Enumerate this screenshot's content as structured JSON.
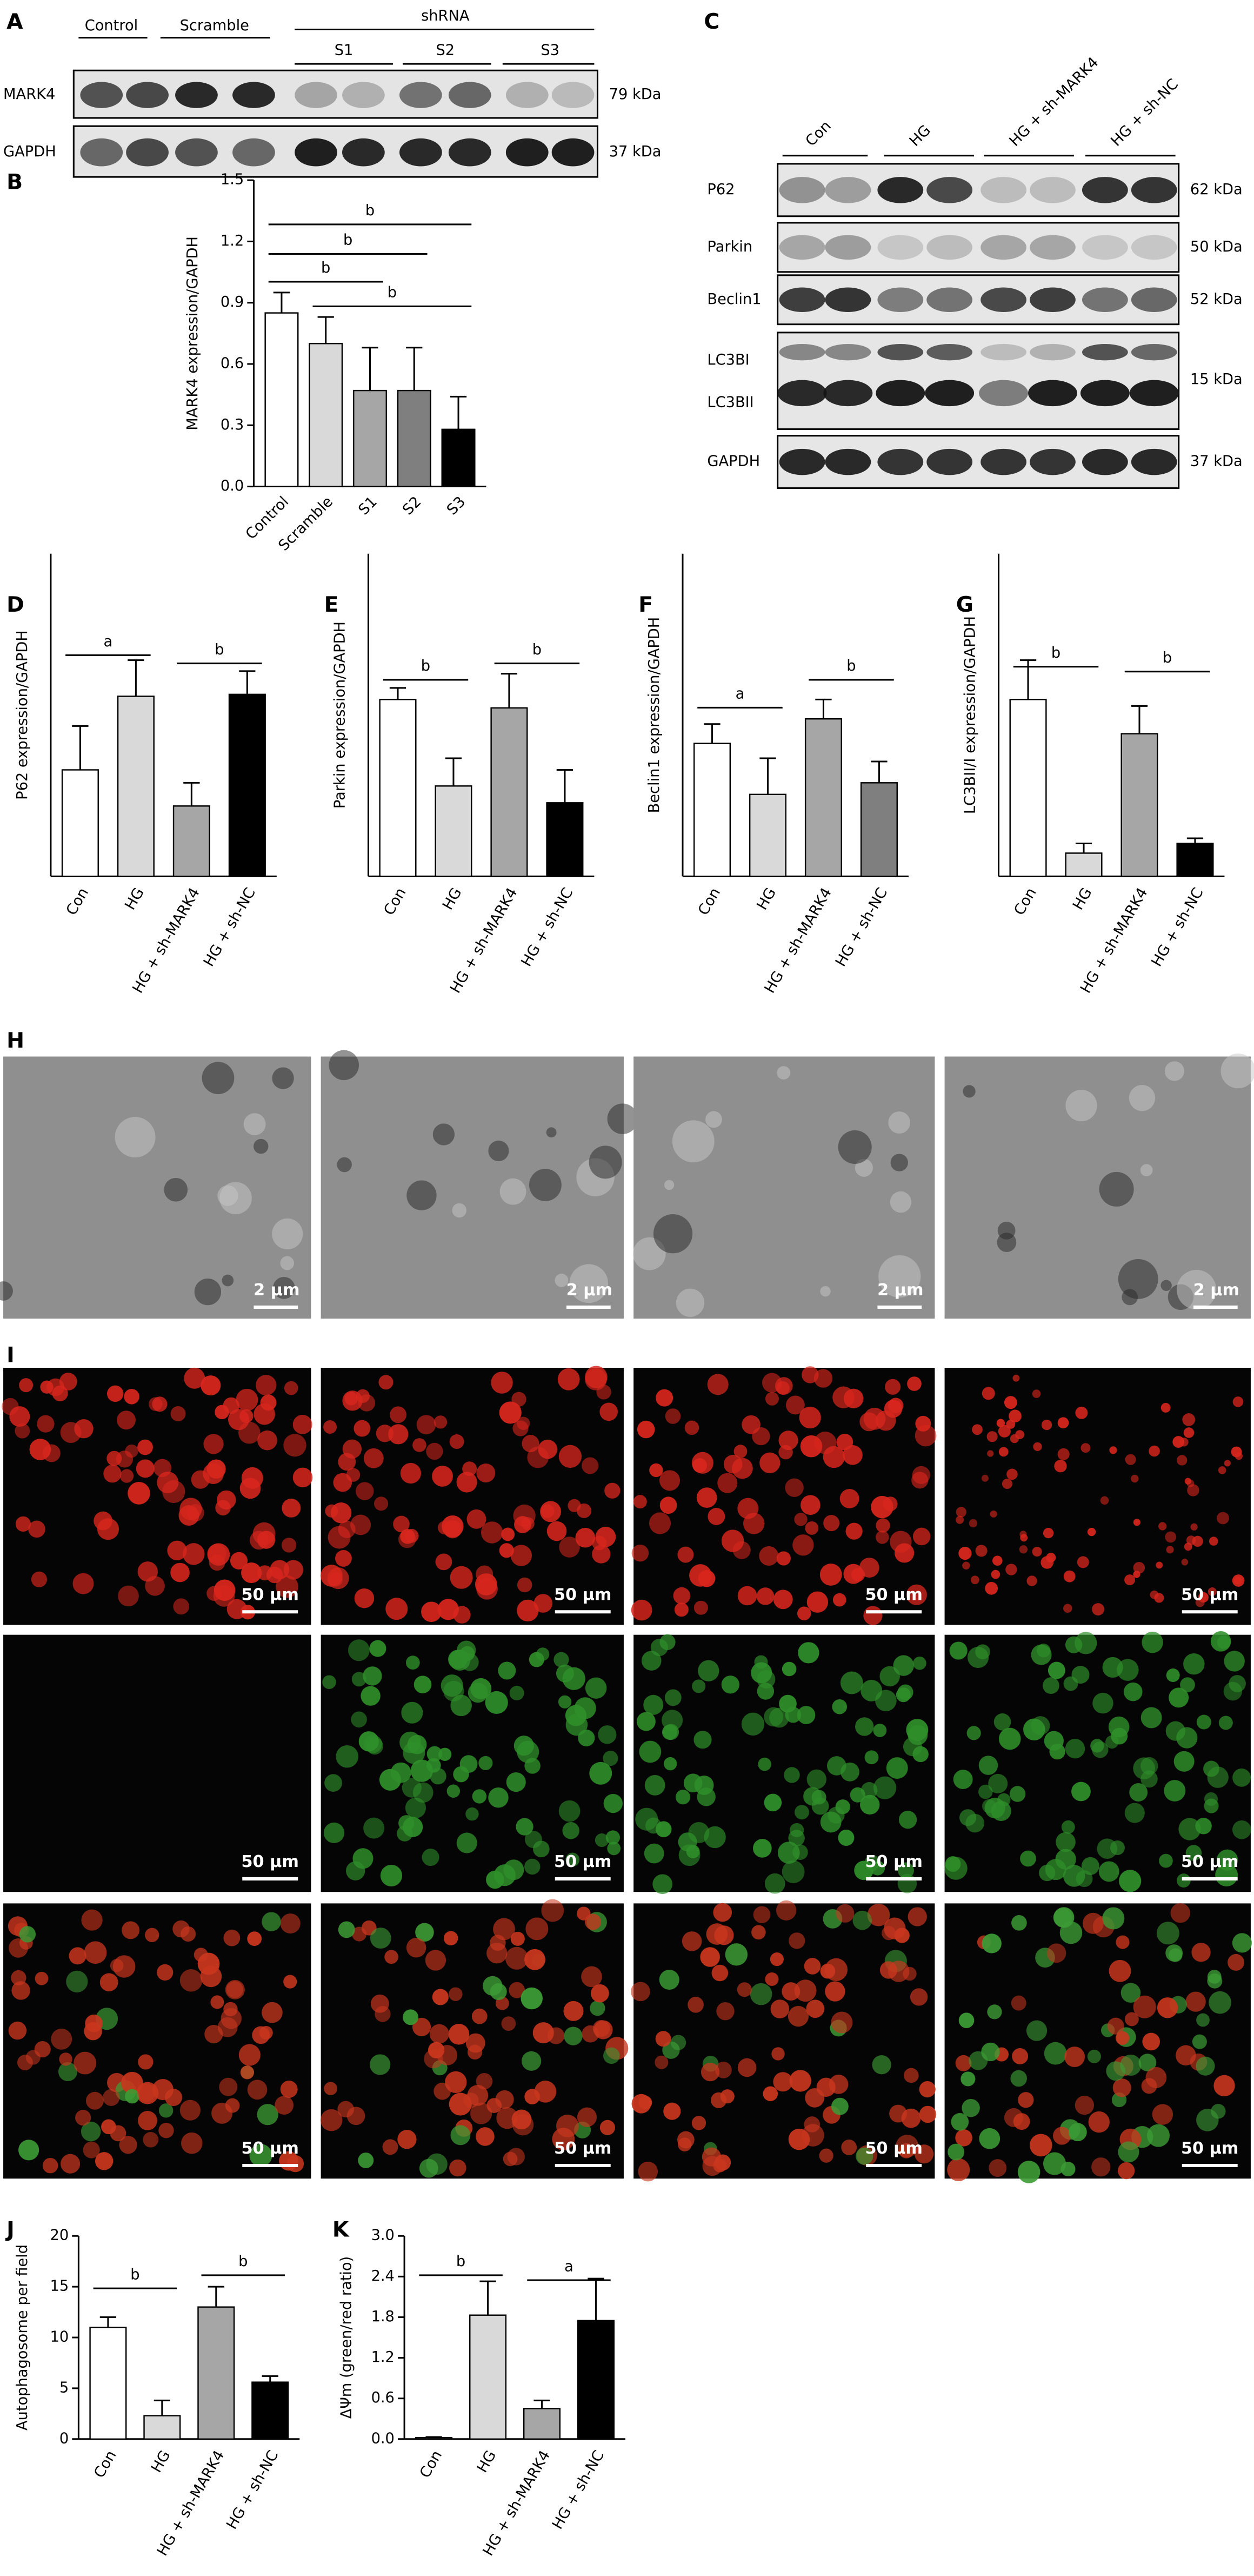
{
  "blot_a": {
    "label": "A",
    "groups": [
      "Control",
      "Scramble",
      "shRNA"
    ],
    "lanes": [
      "S1",
      "S2",
      "S3"
    ],
    "rows": [
      "MARK4",
      "GAPDH"
    ],
    "sizes": [
      "79 kDa",
      "37 kDa"
    ]
  },
  "blot_c": {
    "label": "C",
    "groups": [
      "Con",
      "HG",
      "HG + sh-MARK4",
      "HG + sh-NC"
    ],
    "rows": [
      "P62",
      "Parkin",
      "Beclin1",
      "LC3BI",
      "LC3BII",
      "GAPDH"
    ],
    "sizes": [
      "62 kDa",
      "50 kDa",
      "52 kDa",
      "15 kDa",
      "37 kDa"
    ]
  },
  "panel_h": {
    "label": "H",
    "scale_labels": [
      "2 μm",
      "2 μm",
      "2 μm",
      "2 μm"
    ]
  },
  "panel_i": {
    "label": "I",
    "scale_labels": [
      "50 μm",
      "50 μm",
      "50 μm",
      "50 μm",
      "50 μm",
      "50 μm",
      "50 μm",
      "50 μm",
      "50 μm",
      "50 μm",
      "50 μm",
      "50 μm"
    ]
  },
  "chart_data": [
    {
      "type": "bar",
      "label": "B",
      "ylabel": "MARK4 expression/GAPDH",
      "categories": [
        "Control",
        "Scramble",
        "S1",
        "S2",
        "S3"
      ],
      "values": [
        0.85,
        0.7,
        0.47,
        0.47,
        0.28
      ],
      "errors": [
        0.1,
        0.13,
        0.21,
        0.21,
        0.16
      ],
      "colors": [
        "#ffffff",
        "#d9d9d9",
        "#a6a6a6",
        "#7f7f7f",
        "#000000"
      ],
      "ylim": [
        0,
        1.5
      ],
      "yticks": [
        {
          "value": 0,
          "label": "0.0"
        },
        0.3,
        0.6,
        0.9,
        1.2,
        1.5
      ],
      "annotations": [
        "b",
        "b",
        "b",
        "b"
      ]
    },
    {
      "type": "bar",
      "label": "D",
      "ylabel": "P62 expression/GAPDH",
      "categories": [
        "Con",
        "HG",
        "HG + sh-MARK4",
        "HG + sh-NC"
      ],
      "values": [
        1.65,
        2.79,
        1.09,
        2.82
      ],
      "errors": [
        0.68,
        0.56,
        0.36,
        0.36
      ],
      "colors": [
        "#ffffff",
        "#d9d9d9",
        "#a6a6a6",
        "#000000"
      ],
      "ylim": [
        0,
        5
      ],
      "annotations": [
        "a",
        "b"
      ]
    },
    {
      "type": "bar",
      "label": "E",
      "ylabel": "Parkin expression/GAPDH",
      "categories": [
        "Con",
        "HG",
        "HG + sh-MARK4",
        "HG + sh-NC"
      ],
      "values": [
        2.74,
        1.4,
        2.61,
        1.14
      ],
      "errors": [
        0.18,
        0.43,
        0.53,
        0.51
      ],
      "colors": [
        "#ffffff",
        "#d9d9d9",
        "#a6a6a6",
        "#000000"
      ],
      "ylim": [
        0,
        5
      ],
      "annotations": [
        "b",
        "b"
      ]
    },
    {
      "type": "bar",
      "label": "F",
      "ylabel": "Beclin1 expression/GAPDH",
      "categories": [
        "Con",
        "HG",
        "HG + sh-MARK4",
        "HG + sh-NC"
      ],
      "values": [
        2.06,
        1.27,
        2.44,
        1.45
      ],
      "errors": [
        0.3,
        0.56,
        0.3,
        0.33
      ],
      "colors": [
        "#ffffff",
        "#d9d9d9",
        "#a6a6a6",
        "#7f7f7f"
      ],
      "ylim": [
        0,
        5
      ],
      "annotations": [
        "a",
        "b"
      ]
    },
    {
      "type": "bar",
      "label": "G",
      "ylabel": "LC3BII/I expression/GAPDH",
      "categories": [
        "Con",
        "HG",
        "HG + sh-MARK4",
        "HG + sh-NC"
      ],
      "values": [
        2.74,
        0.36,
        2.21,
        0.51
      ],
      "errors": [
        0.61,
        0.15,
        0.43,
        0.08
      ],
      "colors": [
        "#ffffff",
        "#d9d9d9",
        "#a6a6a6",
        "#000000"
      ],
      "ylim": [
        0,
        5
      ],
      "annotations": [
        "b",
        "b"
      ]
    },
    {
      "type": "bar",
      "label": "J",
      "ylabel": "Autophagosome per field",
      "categories": [
        "Con",
        "HG",
        "HG + sh-MARK4",
        "HG + sh-NC"
      ],
      "values": [
        11,
        2.3,
        13,
        5.6
      ],
      "errors": [
        1,
        1.5,
        2,
        0.6
      ],
      "colors": [
        "#ffffff",
        "#d9d9d9",
        "#a6a6a6",
        "#000000"
      ],
      "ylim": [
        0,
        20
      ],
      "yticks": [
        0,
        5,
        10,
        15,
        20
      ],
      "annotations": [
        "b",
        "b"
      ]
    },
    {
      "type": "bar",
      "label": "K",
      "ylabel": "ΔΨm (green/red ratio)",
      "categories": [
        "Con",
        "HG",
        "HG + sh-MARK4",
        "HG + sh-NC"
      ],
      "values": [
        0.02,
        1.83,
        0.45,
        1.75
      ],
      "errors": [
        0.01,
        0.5,
        0.12,
        0.62
      ],
      "colors": [
        "#ffffff",
        "#d9d9d9",
        "#a6a6a6",
        "#000000"
      ],
      "ylim": [
        0,
        3
      ],
      "yticks": [
        {
          "value": 0,
          "label": "0.0"
        },
        0.6,
        1.2,
        1.8,
        2.4,
        {
          "value": 3,
          "label": "3.0"
        }
      ],
      "annotations": [
        "b",
        "a"
      ]
    }
  ]
}
